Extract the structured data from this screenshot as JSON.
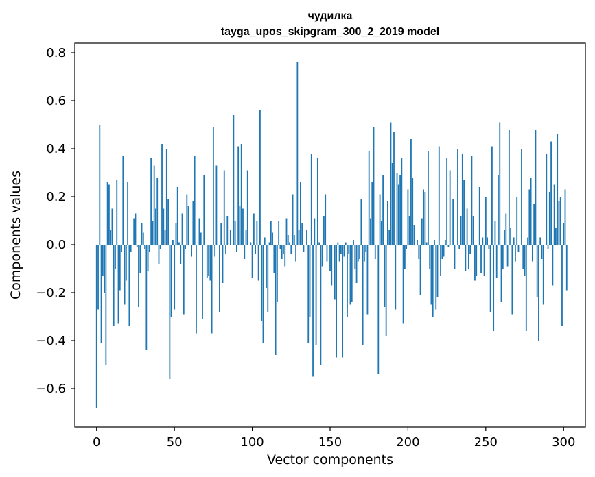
{
  "chart_data": {
    "type": "bar",
    "title_line1": "чудилка",
    "title_line2": "tayga_upos_skipgram_300_2_2019 model",
    "xlabel": "Vector components",
    "ylabel": "Components values",
    "xlim": [
      -14,
      314
    ],
    "ylim": [
      -0.76,
      0.84
    ],
    "x_ticks": [
      0,
      50,
      100,
      150,
      200,
      250,
      300
    ],
    "x_tick_labels": [
      "0",
      "50",
      "100",
      "150",
      "200",
      "250",
      "300"
    ],
    "y_ticks": [
      -0.6,
      -0.4,
      -0.2,
      0.0,
      0.2,
      0.4,
      0.6,
      0.8
    ],
    "y_tick_labels": [
      "−0.6",
      "−0.4",
      "−0.2",
      "0.0",
      "0.2",
      "0.4",
      "0.6",
      "0.8"
    ],
    "bar_color": "#1f77b4",
    "values": [
      -0.68,
      -0.27,
      0.5,
      -0.41,
      -0.13,
      -0.2,
      -0.5,
      0.26,
      0.25,
      0.06,
      0.15,
      -0.34,
      -0.1,
      0.27,
      -0.33,
      -0.19,
      -0.03,
      0.37,
      -0.25,
      -0.15,
      0.26,
      -0.34,
      -0.03,
      0.0,
      0.11,
      0.13,
      -0.01,
      -0.26,
      -0.12,
      0.09,
      0.05,
      -0.02,
      -0.44,
      -0.11,
      -0.03,
      0.36,
      0.1,
      0.33,
      0.15,
      0.28,
      -0.08,
      -0.02,
      0.42,
      0.15,
      0.06,
      0.4,
      0.19,
      -0.56,
      -0.3,
      0.02,
      -0.27,
      0.09,
      0.24,
      0.01,
      -0.08,
      0.13,
      -0.29,
      -0.02,
      0.21,
      0.16,
      0.0,
      -0.05,
      0.18,
      0.37,
      -0.37,
      0.0,
      0.11,
      0.05,
      -0.31,
      0.29,
      0.0,
      -0.14,
      -0.13,
      -0.15,
      -0.37,
      0.49,
      -0.05,
      0.33,
      0.0,
      -0.28,
      0.09,
      -0.16,
      0.31,
      -0.04,
      0.12,
      0.0,
      0.06,
      0.0,
      0.54,
      0.1,
      -0.03,
      0.41,
      0.16,
      0.42,
      0.15,
      -0.06,
      0.06,
      0.31,
      0.0,
      0.01,
      -0.14,
      0.13,
      -0.04,
      0.1,
      -0.15,
      0.56,
      -0.32,
      -0.41,
      0.03,
      -0.18,
      -0.28,
      0.01,
      0.1,
      0.05,
      -0.12,
      -0.46,
      -0.24,
      0.1,
      -0.02,
      -0.06,
      -0.04,
      -0.09,
      0.11,
      0.04,
      0.01,
      -0.04,
      0.21,
      0.04,
      -0.07,
      0.76,
      0.06,
      0.26,
      0.09,
      -0.03,
      0.0,
      0.06,
      -0.41,
      -0.3,
      0.38,
      -0.55,
      0.11,
      -0.42,
      0.36,
      0.01,
      -0.5,
      -0.09,
      0.12,
      0.21,
      -0.07,
      0.0,
      -0.11,
      -0.17,
      0.0,
      -0.23,
      -0.47,
      0.01,
      -0.07,
      -0.04,
      -0.47,
      -0.05,
      0.01,
      -0.3,
      -0.04,
      -0.25,
      -0.24,
      0.02,
      -0.1,
      -0.16,
      -0.07,
      -0.06,
      0.19,
      -0.42,
      -0.07,
      -0.03,
      -0.29,
      0.39,
      0.11,
      0.26,
      0.49,
      -0.06,
      0.0,
      -0.54,
      0.21,
      0.1,
      0.29,
      -0.26,
      -0.38,
      0.18,
      0.06,
      0.51,
      0.34,
      0.47,
      -0.27,
      0.3,
      0.25,
      0.29,
      0.36,
      -0.33,
      -0.1,
      -0.02,
      0.23,
      0.12,
      0.44,
      0.28,
      0.08,
      0.0,
      0.02,
      -0.06,
      -0.21,
      0.11,
      0.23,
      0.22,
      0.01,
      0.39,
      -0.1,
      -0.25,
      -0.3,
      0.02,
      -0.27,
      -0.22,
      0.41,
      -0.13,
      -0.06,
      -0.05,
      0.02,
      0.36,
      -0.01,
      0.31,
      0.0,
      0.19,
      -0.1,
      0.0,
      0.4,
      -0.02,
      0.12,
      0.38,
      0.27,
      -0.11,
      0.15,
      -0.1,
      -0.04,
      0.37,
      0.12,
      -0.15,
      -0.13,
      0.0,
      0.24,
      -0.12,
      0.03,
      -0.13,
      0.2,
      0.03,
      -0.02,
      -0.28,
      0.41,
      -0.36,
      0.1,
      -0.14,
      0.29,
      0.51,
      -0.24,
      -0.1,
      0.06,
      0.13,
      -0.09,
      0.48,
      0.07,
      -0.29,
      0.03,
      -0.07,
      0.2,
      -0.03,
      0.0,
      0.4,
      -0.1,
      -0.13,
      -0.36,
      0.03,
      0.23,
      0.28,
      -0.07,
      0.17,
      0.48,
      -0.22,
      -0.4,
      0.03,
      -0.06,
      -0.25,
      0.0,
      0.38,
      -0.02,
      0.22,
      0.43,
      -0.17,
      0.25,
      0.07,
      0.46,
      0.18,
      0.2,
      -0.34,
      0.09,
      0.23,
      -0.19
    ]
  }
}
